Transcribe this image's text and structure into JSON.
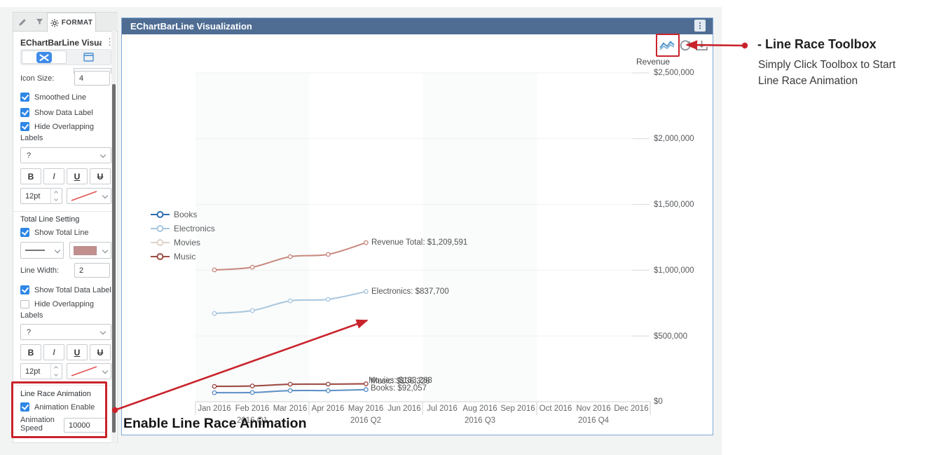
{
  "sidebar": {
    "format_tab": "FORMAT",
    "menu_dots": "⋮",
    "title": "EChartBarLine Visua...",
    "icon_size_label": "Icon Size:",
    "icon_size_value": "4",
    "cb_smoothed": "Smoothed Line",
    "cb_show_data_label": "Show Data Label",
    "cb_hide_overlap_line1": "Hide Overlapping",
    "cb_hide_overlap_line2": "Labels",
    "font_family_value": "?",
    "bold": "B",
    "italic": "I",
    "underline": "U",
    "strikethrough": "U",
    "font_size_value": "12pt",
    "total_section_title": "Total Line Setting",
    "cb_show_total_line": "Show Total Line",
    "total_line_color": "#c28f8f",
    "line_width_label": "Line Width:",
    "line_width_value": "2",
    "cb_show_total_data_label": "Show Total Data Label",
    "cb_hide_overlap2_line1": "Hide Overlapping",
    "cb_hide_overlap2_line2": "Labels",
    "race_section_title": "Line Race Animation",
    "cb_animation_enable": "Animation Enable",
    "animation_speed_line1": "Animation",
    "animation_speed_line2": "Speed",
    "animation_speed_value": "10000"
  },
  "panel": {
    "title": "EChartBarLine Visualization",
    "menu_dots": "⋮"
  },
  "axes": {
    "y_title": "Revenue",
    "y_ticks": [
      "$2,500,000",
      "$2,000,000",
      "$1,500,000",
      "$1,000,000",
      "$500,000",
      "$0"
    ],
    "months": [
      "Jan 2016",
      "Feb 2016",
      "Mar 2016",
      "Apr 2016",
      "May 2016",
      "Jun 2016",
      "Jul 2016",
      "Aug 2016",
      "Sep 2016",
      "Oct 2016",
      "Nov 2016",
      "Dec 2016"
    ],
    "quarters": [
      "2016 Q1",
      "2016 Q2",
      "2016 Q3",
      "2016 Q4"
    ]
  },
  "legend": [
    {
      "label": "Books",
      "color": "#2e6cb0"
    },
    {
      "label": "Electronics",
      "color": "#a9c6de"
    },
    {
      "label": "Movies",
      "color": "#ded3c6"
    },
    {
      "label": "Music",
      "color": "#9e4b45"
    }
  ],
  "data_labels": {
    "revenue_total": "Revenue Total: $1,209,591",
    "electronics": "Electronics: $837,700",
    "movies": "Movies: $133,268",
    "music": "Music: $136,326",
    "books": "Books: $92,057"
  },
  "annotations": {
    "enable_text": "Enable Line Race Animation",
    "toolbox_heading": "- Line Race Toolbox",
    "toolbox_line1": "Simply Click Toolbox to Start",
    "toolbox_line2": "Line Race Animation",
    "red": "#c9232b"
  },
  "chart_data": {
    "type": "line",
    "title": "EChartBarLine Visualization",
    "ylabel": "Revenue",
    "ylim": [
      0,
      2500000
    ],
    "y_tick_step": 500000,
    "grid": true,
    "legend_position": "left",
    "categories_full": [
      "Jan 2016",
      "Feb 2016",
      "Mar 2016",
      "Apr 2016",
      "May 2016",
      "Jun 2016",
      "Jul 2016",
      "Aug 2016",
      "Sep 2016",
      "Oct 2016",
      "Nov 2016",
      "Dec 2016"
    ],
    "x_drawn": [
      "Jan 2016",
      "Feb 2016",
      "Mar 2016",
      "Apr 2016",
      "May 2016"
    ],
    "drawn_through": "May 2016",
    "series": [
      {
        "name": "Books",
        "color": "#5b8fc5",
        "values": [
          69000,
          70000,
          84500,
          85000,
          92057
        ],
        "end_label": "Books: $92,057"
      },
      {
        "name": "Electronics",
        "color": "#a9c6de",
        "values": [
          671000,
          693000,
          767000,
          778000,
          837700
        ],
        "end_label": "Electronics: $837,700"
      },
      {
        "name": "Movies",
        "color": "#ded3c6",
        "values": [
          115000,
          118000,
          131000,
          131500,
          133268
        ],
        "end_label": "Movies: $133,268"
      },
      {
        "name": "Music",
        "color": "#9e4b45",
        "values": [
          117000,
          120000,
          133000,
          134000,
          136326
        ],
        "end_label": "Music: $136,326"
      },
      {
        "name": "Revenue Total",
        "color": "#c8897e",
        "values": [
          1002000,
          1023000,
          1103000,
          1120000,
          1209591
        ],
        "end_label": "Revenue Total: $1,209,591"
      }
    ]
  }
}
